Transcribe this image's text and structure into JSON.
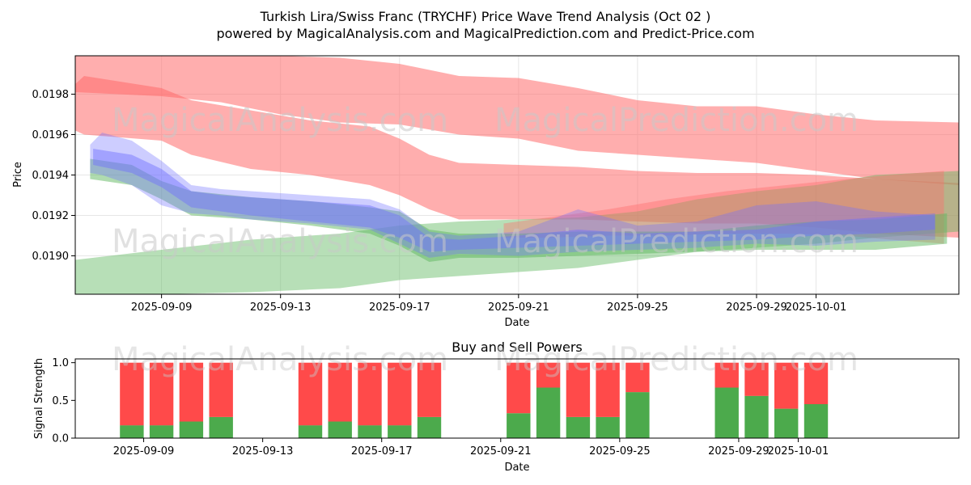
{
  "title": "Turkish Lira/Swiss Franc (TRYCHF) Price Wave Trend Analysis (Oct 02 )",
  "subtitle": "powered by MagicalAnalysis.com and MagicalPrediction.com and Predict-Price.com",
  "watermarks": [
    "MagicalAnalysis.com",
    "MagicalPrediction.com"
  ],
  "colors": {
    "red_band": "#ff6b6b",
    "green_band": "#5fb85f",
    "blue_band": "#6f6fff",
    "buy": "#4caa4c",
    "sell": "#ff4a4a",
    "grid": "#e6e6e6"
  },
  "chart_data": [
    {
      "type": "area",
      "title": "Turkish Lira/Swiss Franc (TRYCHF) Price Wave Trend Analysis (Oct 02 )",
      "xlabel": "Date",
      "ylabel": "Price",
      "x_day_range": [
        -1.9,
        27.8
      ],
      "ylim": [
        0.01881,
        0.01999
      ],
      "x_ticks": [
        {
          "day": 1,
          "label": "2025-09-09"
        },
        {
          "day": 5,
          "label": "2025-09-13"
        },
        {
          "day": 9,
          "label": "2025-09-17"
        },
        {
          "day": 13,
          "label": "2025-09-21"
        },
        {
          "day": 17,
          "label": "2025-09-25"
        },
        {
          "day": 21,
          "label": "2025-09-29"
        },
        {
          "day": 23,
          "label": "2025-10-01"
        }
      ],
      "y_ticks": [
        {
          "value": 0.019,
          "label": "0.0190"
        },
        {
          "value": 0.0192,
          "label": "0.0192"
        },
        {
          "value": 0.0194,
          "label": "0.0194"
        },
        {
          "value": 0.0196,
          "label": "0.0196"
        },
        {
          "value": 0.0198,
          "label": "0.0198"
        }
      ],
      "bands": [
        {
          "name": "red-upper",
          "color": "red_band",
          "opacity": 0.55,
          "x": [
            -1.9,
            1,
            3,
            5,
            7,
            9,
            11,
            13,
            15,
            17,
            19,
            21,
            23,
            25,
            27.8
          ],
          "upper": [
            0.01999,
            0.01999,
            0.01999,
            0.01999,
            0.01998,
            0.01995,
            0.01989,
            0.01988,
            0.01983,
            0.01977,
            0.01974,
            0.01974,
            0.0197,
            0.01967,
            0.01966
          ],
          "lower": [
            0.01981,
            0.01979,
            0.01976,
            0.0197,
            0.01966,
            0.01965,
            0.0196,
            0.01958,
            0.01952,
            0.0195,
            0.01948,
            0.01946,
            0.01942,
            0.01938,
            0.01935
          ]
        },
        {
          "name": "red-lower",
          "color": "red_band",
          "opacity": 0.55,
          "x": [
            -1.9,
            -1.6,
            1,
            2,
            4,
            6,
            8,
            9,
            10,
            11,
            13,
            15,
            17,
            19,
            21,
            23,
            25,
            27.8
          ],
          "upper": [
            0.01985,
            0.01989,
            0.01983,
            0.01977,
            0.01972,
            0.01967,
            0.01964,
            0.01958,
            0.0195,
            0.01946,
            0.01945,
            0.01944,
            0.01942,
            0.01941,
            0.01941,
            0.0194,
            0.01938,
            0.01936
          ],
          "lower": [
            0.01962,
            0.0196,
            0.01957,
            0.0195,
            0.01943,
            0.0194,
            0.01935,
            0.0193,
            0.01923,
            0.01918,
            0.01918,
            0.01918,
            0.01917,
            0.01916,
            0.01916,
            0.01914,
            0.01911,
            0.01909
          ]
        },
        {
          "name": "green-wide",
          "color": "green_band",
          "opacity": 0.45,
          "x": [
            -1.9,
            1,
            4,
            7,
            9,
            11,
            13,
            15,
            17,
            19,
            21,
            23,
            25,
            27.8
          ],
          "upper": [
            0.01898,
            0.01903,
            0.01908,
            0.01911,
            0.01915,
            0.01917,
            0.01918,
            0.01919,
            0.01922,
            0.01928,
            0.01932,
            0.01935,
            0.0194,
            0.01942
          ],
          "lower": [
            0.01881,
            0.01881,
            0.01882,
            0.01884,
            0.01888,
            0.0189,
            0.01892,
            0.01894,
            0.01898,
            0.01902,
            0.01904,
            0.01906,
            0.01909,
            0.01912
          ]
        },
        {
          "name": "brown-wedge",
          "color": "red_band",
          "opacity": 0.4,
          "x": [
            12.5,
            14,
            16,
            18,
            20,
            22,
            24,
            25.5,
            27.3
          ],
          "upper": [
            0.01916,
            0.01919,
            0.01923,
            0.01928,
            0.01932,
            0.01935,
            0.01938,
            0.0194,
            0.01942
          ],
          "lower": [
            0.01909,
            0.01909,
            0.0191,
            0.0191,
            0.01911,
            0.01911,
            0.0191,
            0.01908,
            0.01906
          ]
        },
        {
          "name": "green-core",
          "color": "green_band",
          "opacity": 0.5,
          "x": [
            -1.4,
            0,
            1,
            2,
            4,
            6,
            8,
            9,
            10,
            11,
            13,
            15,
            17,
            19,
            21,
            23,
            25,
            27.4
          ],
          "upper": [
            0.01948,
            0.01945,
            0.01937,
            0.01932,
            0.01929,
            0.01927,
            0.01924,
            0.01922,
            0.01913,
            0.01911,
            0.01911,
            0.01912,
            0.01912,
            0.01912,
            0.01915,
            0.01917,
            0.01918,
            0.01921
          ],
          "lower": [
            0.01938,
            0.01935,
            0.01928,
            0.0192,
            0.01918,
            0.01915,
            0.01911,
            0.01905,
            0.01897,
            0.01899,
            0.01899,
            0.019,
            0.01901,
            0.01902,
            0.01903,
            0.01903,
            0.01903,
            0.01906
          ]
        },
        {
          "name": "blue-wave",
          "color": "blue_band",
          "opacity": 0.35,
          "x": [
            -1.4,
            -1,
            0,
            1,
            2,
            3,
            4,
            6,
            8,
            9,
            10,
            11,
            13,
            15,
            17,
            19,
            21,
            23,
            25,
            27
          ],
          "upper": [
            0.01955,
            0.01961,
            0.01957,
            0.01947,
            0.01935,
            0.01933,
            0.01932,
            0.0193,
            0.01928,
            0.01923,
            0.01912,
            0.0191,
            0.01912,
            0.01923,
            0.01915,
            0.01917,
            0.01925,
            0.01927,
            0.01922,
            0.0192
          ],
          "lower": [
            0.01941,
            0.0194,
            0.01935,
            0.01925,
            0.01921,
            0.0192,
            0.01918,
            0.01916,
            0.01913,
            0.01906,
            0.01899,
            0.01901,
            0.019,
            0.01902,
            0.01903,
            0.01904,
            0.01906,
            0.01905,
            0.01907,
            0.01908
          ]
        },
        {
          "name": "teal-main",
          "color": "blue_band",
          "opacity": 0.45,
          "x": [
            -1.3,
            0,
            1,
            2,
            3,
            4,
            6,
            8,
            9,
            10,
            11,
            13,
            15,
            17,
            19,
            21,
            23,
            25,
            27
          ],
          "upper": [
            0.01953,
            0.0195,
            0.01943,
            0.01932,
            0.0193,
            0.01929,
            0.01927,
            0.01925,
            0.0192,
            0.01909,
            0.01908,
            0.0191,
            0.01913,
            0.01911,
            0.01912,
            0.01913,
            0.01917,
            0.01919,
            0.01921
          ],
          "lower": [
            0.01945,
            0.01941,
            0.01934,
            0.01924,
            0.01922,
            0.0192,
            0.01917,
            0.01914,
            0.01909,
            0.01902,
            0.01903,
            0.01904,
            0.01905,
            0.01906,
            0.01907,
            0.01908,
            0.0191,
            0.01911,
            0.01913
          ]
        }
      ]
    },
    {
      "type": "bar",
      "title": "Buy and Sell Powers",
      "xlabel": "Date",
      "ylabel": "Signal Strength",
      "x_day_range": [
        -1.9,
        27.8
      ],
      "ylim": [
        0,
        1.05
      ],
      "y_ticks": [
        {
          "value": 0,
          "label": "0.0"
        },
        {
          "value": 0.5,
          "label": "0.5"
        },
        {
          "value": 1.0,
          "label": "1.0"
        }
      ],
      "x_ticks": [
        {
          "day": 1,
          "label": "2025-09-09"
        },
        {
          "day": 5,
          "label": "2025-09-13"
        },
        {
          "day": 9,
          "label": "2025-09-17"
        },
        {
          "day": 13,
          "label": "2025-09-21"
        },
        {
          "day": 17,
          "label": "2025-09-25"
        },
        {
          "day": 21,
          "label": "2025-09-29"
        },
        {
          "day": 23,
          "label": "2025-10-01"
        }
      ],
      "days": [
        0,
        1,
        2,
        3,
        6,
        7,
        8,
        9,
        10,
        13,
        14,
        15,
        16,
        17,
        20,
        21,
        22,
        23
      ],
      "series": [
        {
          "name": "Buy",
          "color": "buy",
          "values": [
            0.17,
            0.17,
            0.22,
            0.28,
            0.17,
            0.22,
            0.17,
            0.17,
            0.28,
            0.33,
            0.67,
            0.28,
            0.28,
            0.61,
            0.67,
            0.56,
            0.39,
            0.45
          ]
        },
        {
          "name": "Sell",
          "color": "sell",
          "values": [
            0.83,
            0.83,
            0.78,
            0.72,
            0.83,
            0.78,
            0.83,
            0.83,
            0.72,
            0.67,
            0.33,
            0.72,
            0.72,
            0.39,
            0.33,
            0.44,
            0.61,
            0.55
          ]
        }
      ]
    }
  ]
}
